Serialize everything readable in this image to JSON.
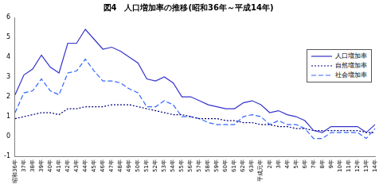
{
  "chart_data": {
    "type": "line",
    "title": "図4　人口増加率の推移(昭和36年～平成14年)",
    "categories": [
      "昭和36年",
      "37年",
      "38年",
      "39年",
      "40年",
      "41年",
      "42年",
      "43年",
      "44年",
      "45年",
      "46年",
      "47年",
      "48年",
      "49年",
      "50年",
      "51年",
      "52年",
      "53年",
      "54年",
      "55年",
      "56年",
      "57年",
      "58年",
      "59年",
      "60年",
      "61年",
      "62年",
      "63年",
      "平成元年",
      "2年",
      "3年",
      "4年",
      "5年",
      "6年",
      "7年",
      "8年",
      "9年",
      "10年",
      "11年",
      "12年",
      "13年",
      "14年"
    ],
    "series": [
      {
        "name": "人口増加率",
        "color": "#3333cc",
        "line_style": "solid",
        "values": [
          2.1,
          3.1,
          3.4,
          4.1,
          3.5,
          3.2,
          4.7,
          4.7,
          5.4,
          4.9,
          4.4,
          4.5,
          4.3,
          4.0,
          3.7,
          2.9,
          2.8,
          3.0,
          2.7,
          2.0,
          2.0,
          1.8,
          1.6,
          1.5,
          1.4,
          1.4,
          1.7,
          1.8,
          1.6,
          1.2,
          1.3,
          1.1,
          1.0,
          0.8,
          0.3,
          0.2,
          0.5,
          0.5,
          0.5,
          0.5,
          0.2,
          0.6
        ]
      },
      {
        "name": "自然増加率",
        "color": "#000080",
        "line_style": "dotted",
        "values": [
          0.9,
          1.0,
          1.1,
          1.2,
          1.2,
          1.1,
          1.4,
          1.4,
          1.5,
          1.5,
          1.5,
          1.6,
          1.6,
          1.6,
          1.5,
          1.4,
          1.3,
          1.2,
          1.1,
          1.1,
          1.0,
          0.9,
          0.9,
          0.9,
          0.8,
          0.8,
          0.7,
          0.7,
          0.6,
          0.6,
          0.5,
          0.5,
          0.4,
          0.4,
          0.3,
          0.3,
          0.3,
          0.3,
          0.3,
          0.3,
          0.2,
          0.2
        ]
      },
      {
        "name": "社会増加率",
        "color": "#3366ff",
        "line_style": "dashed",
        "values": [
          1.2,
          2.2,
          2.3,
          2.9,
          2.3,
          2.1,
          3.2,
          3.3,
          3.9,
          3.3,
          2.8,
          2.8,
          2.7,
          2.4,
          2.2,
          1.5,
          1.5,
          1.8,
          1.6,
          1.0,
          1.0,
          0.9,
          0.7,
          0.6,
          0.6,
          0.6,
          1.0,
          1.1,
          1.0,
          0.6,
          0.8,
          0.6,
          0.6,
          0.4,
          -0.1,
          -0.1,
          0.2,
          0.2,
          0.2,
          0.2,
          -0.1,
          0.4
        ]
      }
    ],
    "ylim": [
      -1,
      6
    ],
    "yticks": [
      -1,
      0,
      1,
      2,
      3,
      4,
      5,
      6
    ],
    "grid": false,
    "legend": "upper right"
  }
}
